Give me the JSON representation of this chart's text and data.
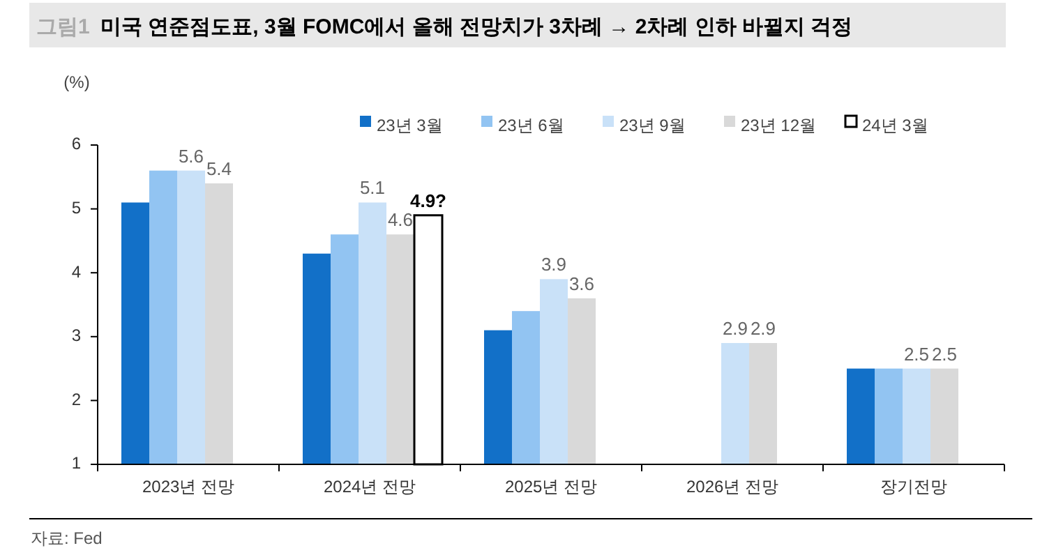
{
  "chart_data": {
    "type": "bar",
    "title": "미국 연준점도표, 3월 FOMC에서 올해 전망치가 3차례 → 2차례 인하 바뀔지 걱정",
    "ylabel": "(%)",
    "annotations": [
      "그림1",
      "자료: Fed"
    ],
    "categories": [
      "2023년 전망",
      "2024년 전망",
      "2025년 전망",
      "2026년 전망",
      "장기전망"
    ],
    "series": [
      {
        "name": "23년 3월",
        "color": "#1270c8",
        "values": [
          5.1,
          4.3,
          3.1,
          null,
          2.5
        ]
      },
      {
        "name": "23년 6월",
        "color": "#92c4f2",
        "values": [
          5.6,
          4.6,
          3.4,
          null,
          2.5
        ]
      },
      {
        "name": "23년 9월",
        "color": "#c9e1f8",
        "values": [
          5.6,
          5.1,
          3.9,
          2.9,
          2.5
        ],
        "value_labels": [
          "5.6",
          "5.1",
          "3.9",
          "2.9",
          "2.5"
        ]
      },
      {
        "name": "23년 12월",
        "color": "#d9d9d9",
        "values": [
          5.4,
          4.6,
          3.6,
          2.9,
          2.5
        ],
        "value_labels": [
          "5.4",
          "4.6",
          "3.6",
          "2.9",
          "2.5"
        ]
      },
      {
        "name": "24년 3월",
        "color": "#ffffff",
        "values": [
          null,
          4.9,
          null,
          null,
          null
        ],
        "value_labels": [
          null,
          "4.9?",
          null,
          null,
          null
        ]
      }
    ],
    "ylim": [
      1,
      6
    ],
    "yticks": [
      1,
      2,
      3,
      4,
      5,
      6
    ],
    "legend": "top right"
  }
}
